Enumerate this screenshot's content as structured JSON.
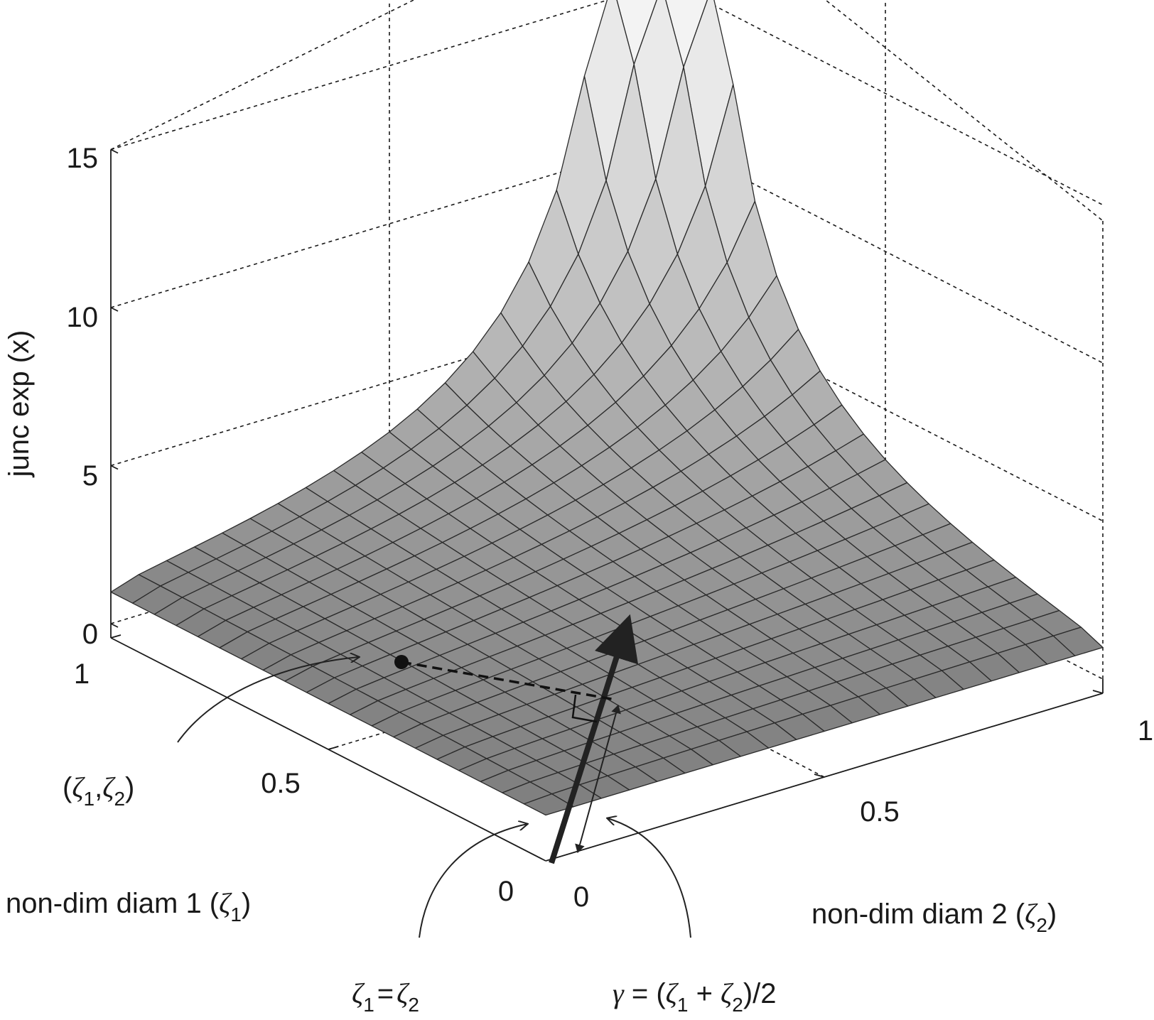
{
  "chart_data": {
    "type": "surface",
    "title": "",
    "zlabel": "junc exp (x)",
    "xlabel": {
      "text": "non-dim diam 1 (",
      "symbol": "ζ",
      "sub": "1",
      "close": ")"
    },
    "ylabel": {
      "text": "non-dim diam 2 (",
      "symbol": "ζ",
      "sub": "2",
      "close": ")"
    },
    "xlim": [
      0,
      1
    ],
    "ylim": [
      0,
      1
    ],
    "zlim": [
      0,
      15
    ],
    "xticks": [
      "0",
      "0.5",
      "1"
    ],
    "yticks": [
      "0",
      "0.5",
      "1"
    ],
    "zticks": [
      "0",
      "5",
      "10",
      "15"
    ],
    "grid": true,
    "grid_resolution": 20,
    "surface_model": "z = 1 / (1 - sqrt(zeta1 * zeta2))",
    "sample_values": [
      {
        "zeta1": 0,
        "zeta2": 0,
        "z": 1
      },
      {
        "zeta1": 1,
        "zeta2": 0,
        "z": 1
      },
      {
        "zeta1": 0,
        "zeta2": 1,
        "z": 1
      },
      {
        "zeta1": 0.5,
        "zeta2": 0.5,
        "z": 2
      },
      {
        "zeta1": 0.95,
        "zeta2": 0.95,
        "z": 15
      }
    ],
    "annotations": {
      "point": {
        "open": "(",
        "s": "ζ",
        "sub1": "1",
        "comma": ",",
        "sub2": "2",
        "close": ")"
      },
      "diagonal": {
        "s": "ζ",
        "sub1": "1",
        "eq": "=",
        "sub2": "2"
      },
      "gamma": {
        "g": "γ",
        "eq": " = (",
        "s": "ζ",
        "sub1": "1",
        "plus": " + ",
        "sub2": "2",
        "tail": ")/2"
      }
    },
    "colors": {
      "surface_light": "#f3f3f3",
      "surface_dark": "#7c7c7c",
      "edge": "#2a2a2a",
      "axis": "#1a1a1a"
    }
  }
}
